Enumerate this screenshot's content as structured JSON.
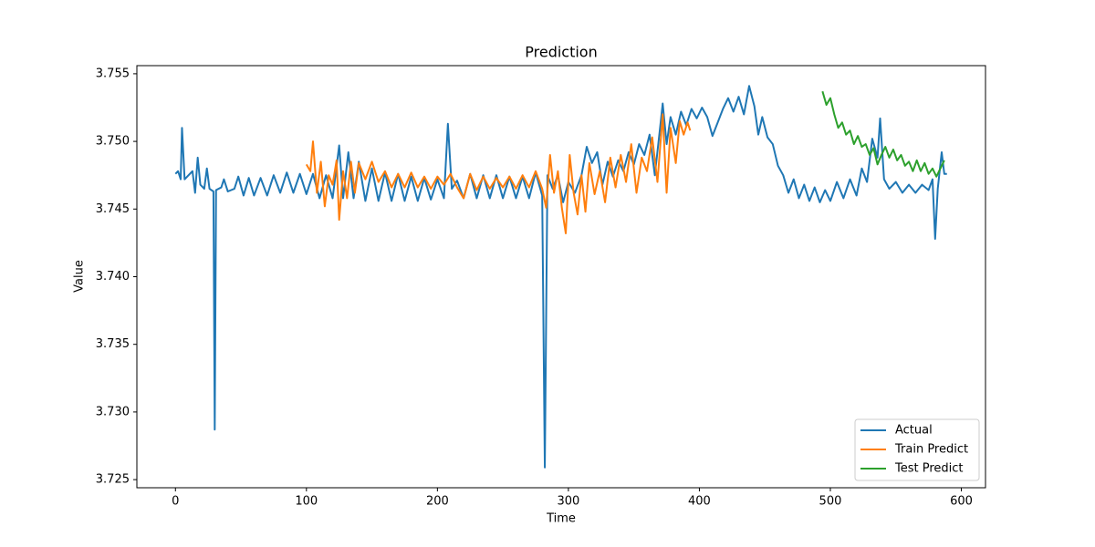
{
  "chart_data": {
    "type": "line",
    "title": "Prediction",
    "x_label": "Time",
    "y_label": "Value",
    "xlim": [
      -29.45,
      618.45
    ],
    "xticks": [
      0,
      100,
      200,
      300,
      400,
      500,
      600
    ],
    "ylim": [
      3.7244,
      3.7556
    ],
    "yticks": [
      3.725,
      {
        "value": 3.73,
        "label": "3.730"
      },
      3.735,
      {
        "value": 3.74,
        "label": "3.740"
      },
      3.745,
      {
        "value": 3.75,
        "label": "3.750"
      },
      3.755
    ],
    "grid": false,
    "legend": "lower right",
    "series": [
      {
        "name": "Actual",
        "color": "#1f77b4",
        "x": [
          0,
          2,
          4,
          5,
          7,
          10,
          13,
          15,
          17,
          19,
          22,
          24,
          26,
          29,
          30,
          31,
          35,
          37,
          40,
          45,
          48,
          52,
          56,
          60,
          65,
          70,
          75,
          80,
          85,
          90,
          95,
          100,
          105,
          110,
          115,
          120,
          125,
          128,
          132,
          136,
          140,
          145,
          150,
          155,
          160,
          165,
          170,
          175,
          180,
          185,
          190,
          195,
          200,
          205,
          208,
          211,
          215,
          220,
          225,
          230,
          235,
          240,
          245,
          250,
          255,
          260,
          265,
          270,
          275,
          280,
          282,
          284,
          288,
          292,
          296,
          300,
          305,
          310,
          314,
          318,
          322,
          326,
          330,
          334,
          338,
          342,
          346,
          350,
          354,
          358,
          362,
          366,
          370,
          372,
          375,
          378,
          382,
          386,
          390,
          394,
          398,
          402,
          406,
          410,
          414,
          418,
          422,
          426,
          430,
          434,
          438,
          442,
          445,
          448,
          452,
          456,
          460,
          464,
          468,
          472,
          476,
          480,
          484,
          488,
          492,
          496,
          500,
          505,
          510,
          515,
          520,
          524,
          528,
          532,
          536,
          538,
          541,
          545,
          550,
          555,
          560,
          565,
          570,
          575,
          578,
          580,
          582,
          585,
          587,
          589
        ],
        "values": [
          3.7476,
          3.7478,
          3.7472,
          3.751,
          3.7472,
          3.7475,
          3.7478,
          3.7462,
          3.7488,
          3.7468,
          3.7465,
          3.748,
          3.7465,
          3.7463,
          3.7287,
          3.7464,
          3.7466,
          3.7472,
          3.7463,
          3.7465,
          3.7474,
          3.746,
          3.7473,
          3.746,
          3.7473,
          3.746,
          3.7475,
          3.7462,
          3.7477,
          3.7462,
          3.7476,
          3.7461,
          3.7476,
          3.7458,
          3.7475,
          3.7458,
          3.7497,
          3.7458,
          3.7492,
          3.7458,
          3.7485,
          3.7456,
          3.748,
          3.7456,
          3.7477,
          3.7456,
          3.7476,
          3.7456,
          3.7474,
          3.7456,
          3.7473,
          3.7457,
          3.7472,
          3.7458,
          3.7513,
          3.7465,
          3.7471,
          3.7458,
          3.7476,
          3.7458,
          3.7475,
          3.7458,
          3.7475,
          3.7458,
          3.7474,
          3.7458,
          3.7474,
          3.7458,
          3.7477,
          3.746,
          3.7259,
          3.7475,
          3.7465,
          3.7475,
          3.7455,
          3.747,
          3.7462,
          3.7475,
          3.7496,
          3.7484,
          3.7492,
          3.7468,
          3.7485,
          3.7474,
          3.7486,
          3.7478,
          3.7492,
          3.7483,
          3.7498,
          3.749,
          3.7505,
          3.7475,
          3.751,
          3.7528,
          3.7498,
          3.7518,
          3.7505,
          3.7522,
          3.7512,
          3.7524,
          3.7517,
          3.7525,
          3.7518,
          3.7504,
          3.7514,
          3.7524,
          3.7532,
          3.7522,
          3.7533,
          3.752,
          3.7541,
          3.7526,
          3.7505,
          3.7518,
          3.7503,
          3.7498,
          3.7482,
          3.7475,
          3.7462,
          3.7472,
          3.7458,
          3.7468,
          3.7456,
          3.7466,
          3.7455,
          3.7464,
          3.7456,
          3.747,
          3.7458,
          3.7472,
          3.746,
          3.748,
          3.747,
          3.7502,
          3.7488,
          3.7517,
          3.7472,
          3.7465,
          3.747,
          3.7462,
          3.7468,
          3.7462,
          3.7468,
          3.7464,
          3.7472,
          3.7428,
          3.7465,
          3.7492,
          3.7476,
          3.7476
        ]
      },
      {
        "name": "Train Predict",
        "color": "#ff7f0e",
        "x": [
          100,
          103,
          105,
          108,
          111,
          114,
          117,
          120,
          123,
          125,
          128,
          131,
          134,
          137,
          140,
          145,
          150,
          155,
          160,
          165,
          170,
          175,
          180,
          185,
          190,
          195,
          200,
          205,
          210,
          215,
          220,
          225,
          230,
          235,
          240,
          245,
          250,
          255,
          260,
          265,
          270,
          275,
          280,
          283,
          286,
          289,
          292,
          295,
          298,
          301,
          304,
          307,
          310,
          313,
          316,
          320,
          324,
          328,
          332,
          336,
          340,
          344,
          348,
          352,
          356,
          360,
          364,
          368,
          372,
          375,
          378,
          382,
          385,
          388,
          391,
          393
        ],
        "values": [
          3.7483,
          3.7478,
          3.75,
          3.7462,
          3.7485,
          3.7452,
          3.7475,
          3.7468,
          3.7486,
          3.7442,
          3.7478,
          3.7458,
          3.7485,
          3.7462,
          3.7484,
          3.7472,
          3.7485,
          3.747,
          3.7478,
          3.7466,
          3.7476,
          3.7466,
          3.7477,
          3.7466,
          3.7474,
          3.7465,
          3.7474,
          3.7468,
          3.7476,
          3.7466,
          3.7458,
          3.7476,
          3.7464,
          3.7474,
          3.7465,
          3.7473,
          3.7466,
          3.7474,
          3.7465,
          3.7475,
          3.7466,
          3.7478,
          3.7465,
          3.7451,
          3.749,
          3.7462,
          3.7478,
          3.7451,
          3.7432,
          3.749,
          3.7462,
          3.7446,
          3.7475,
          3.7448,
          3.7484,
          3.7461,
          3.7478,
          3.7455,
          3.7488,
          3.7466,
          3.749,
          3.747,
          3.7498,
          3.7462,
          3.7488,
          3.7478,
          3.7503,
          3.747,
          3.752,
          3.7462,
          3.751,
          3.7484,
          3.7515,
          3.7505,
          3.7514,
          3.7508
        ]
      },
      {
        "name": "Test Predict",
        "color": "#2ca02c",
        "x": [
          494,
          497,
          500,
          503,
          506,
          509,
          512,
          515,
          518,
          521,
          524,
          527,
          530,
          533,
          536,
          539,
          542,
          545,
          548,
          551,
          554,
          557,
          560,
          563,
          566,
          569,
          572,
          575,
          578,
          581,
          584,
          587
        ],
        "values": [
          3.7537,
          3.7527,
          3.7532,
          3.752,
          3.751,
          3.7514,
          3.7505,
          3.7508,
          3.7498,
          3.7504,
          3.7496,
          3.7498,
          3.749,
          3.7495,
          3.7483,
          3.749,
          3.7496,
          3.7488,
          3.7494,
          3.7486,
          3.749,
          3.7482,
          3.7485,
          3.7478,
          3.7486,
          3.7478,
          3.7484,
          3.7476,
          3.748,
          3.7474,
          3.748,
          3.7486
        ]
      }
    ]
  }
}
